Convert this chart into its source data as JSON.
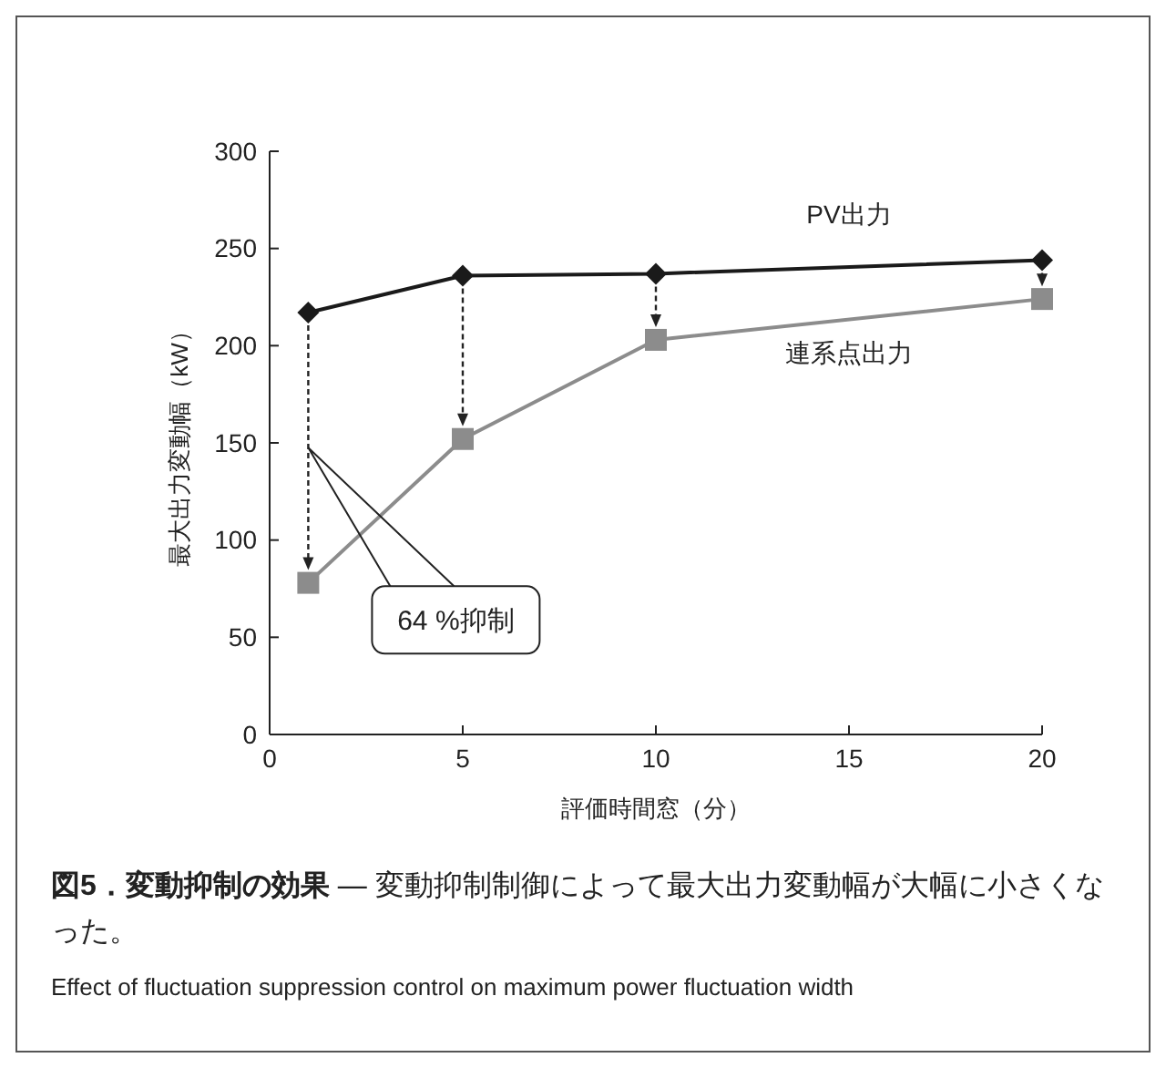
{
  "chart_data": {
    "type": "line",
    "title": "図5．変動抑制の効果",
    "xlabel": "評価時間窓（分）",
    "ylabel": "最大出力変動幅（kW）",
    "x": [
      1,
      5,
      10,
      20
    ],
    "series": [
      {
        "name": "PV出力",
        "color": "#1a1a1a",
        "values": [
          217,
          236,
          237,
          244
        ],
        "marker": "diamond"
      },
      {
        "name": "連系点出力",
        "color": "#8c8c8c",
        "values": [
          78,
          152,
          203,
          224
        ],
        "marker": "square"
      }
    ],
    "xlim": [
      0,
      20
    ],
    "xticks": [
      0,
      5,
      10,
      15,
      20
    ],
    "ylim": [
      0,
      300
    ],
    "yticks": [
      0,
      50,
      100,
      150,
      200,
      250,
      300
    ],
    "grid": false,
    "line_style": "solid",
    "annotations": [
      "64 %抑制",
      "— 変動抑制制御によって最大出力変動幅が大幅に小さくなった。",
      "Effect of fluctuation suppression control on maximum power fluctuation width"
    ]
  }
}
